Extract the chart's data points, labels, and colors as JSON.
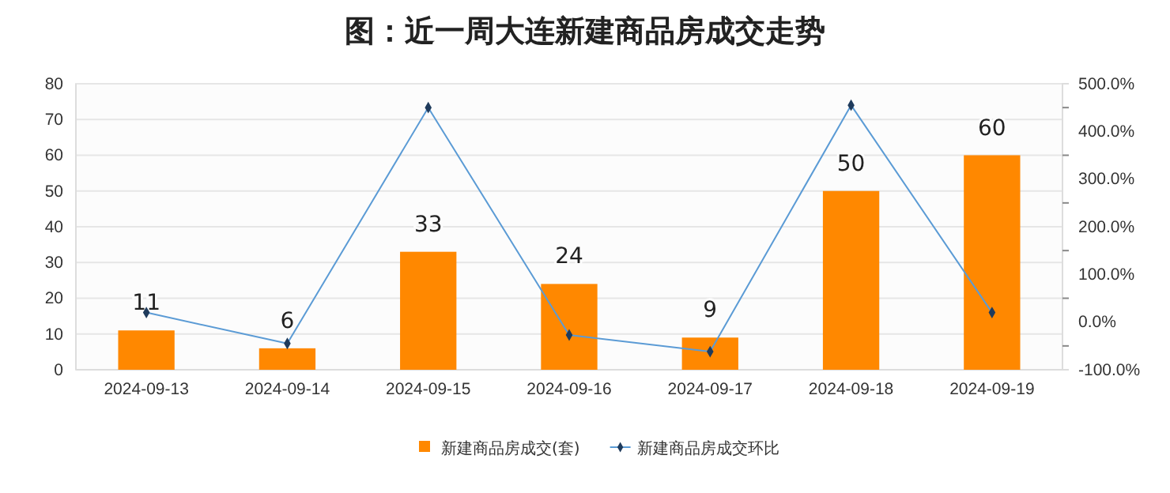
{
  "chart_data": {
    "type": "bar",
    "title": "图：近一周大连新建商品房成交走势",
    "categories": [
      "2024-09-13",
      "2024-09-14",
      "2024-09-15",
      "2024-09-16",
      "2024-09-17",
      "2024-09-18",
      "2024-09-19"
    ],
    "series": [
      {
        "name": "新建商品房成交(套)",
        "color": "#ff8800",
        "values": [
          11,
          6,
          33,
          24,
          9,
          50,
          60
        ],
        "data_labels": true
      },
      {
        "name": "新建商品房成交环比",
        "type": "line",
        "axis": "y2",
        "color": "#5b9bd5",
        "marker": "diamond",
        "values": [
          20,
          -45,
          450,
          -27,
          -62,
          455,
          20
        ]
      }
    ],
    "ylim": [
      0,
      80
    ],
    "yticks": [
      0,
      10,
      20,
      30,
      40,
      50,
      60,
      70,
      80
    ],
    "y2lim": [
      -100,
      500
    ],
    "y2ticks": [
      {
        "value": -100,
        "label": "-100.0%"
      },
      {
        "value": -50,
        "label": null
      },
      {
        "value": 0,
        "label": "0.0%"
      },
      {
        "value": 50,
        "label": null
      },
      {
        "value": 100,
        "label": "100.0%"
      },
      {
        "value": 150,
        "label": null
      },
      {
        "value": 200,
        "label": "200.0%"
      },
      {
        "value": 250,
        "label": null
      },
      {
        "value": 300,
        "label": "300.0%"
      },
      {
        "value": 350,
        "label": null
      },
      {
        "value": 400,
        "label": "400.0%"
      },
      {
        "value": 450,
        "label": null
      },
      {
        "value": 500,
        "label": "500.0%"
      }
    ],
    "grid": "y",
    "legend": "bottom"
  }
}
